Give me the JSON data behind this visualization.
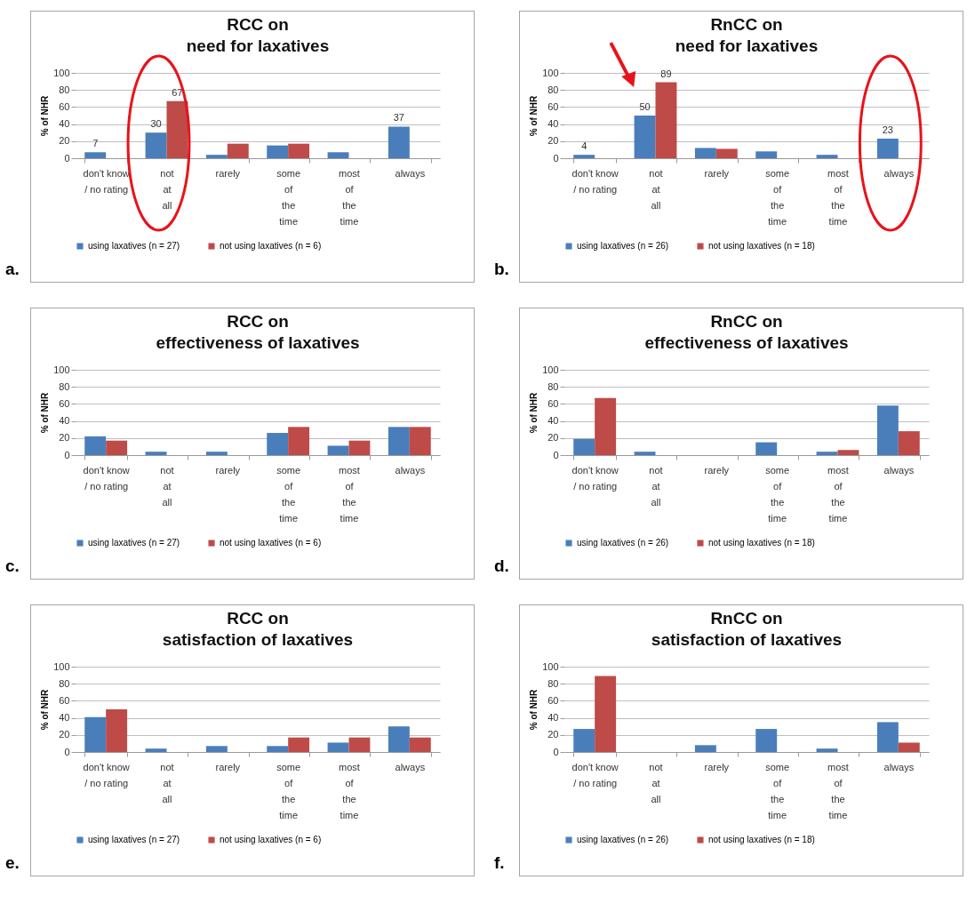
{
  "chart_data": [
    {
      "type": "bar",
      "title": "RCC on\nneed for laxatives",
      "ylabel": "% of NHR",
      "annotations": [
        "a."
      ],
      "categories": [
        "don't know\n/ no rating",
        "not\nat\nall",
        "rarely",
        "some\nof\nthe\ntime",
        "most\nof\nthe\ntime",
        "always"
      ],
      "ylim": [
        0,
        100
      ],
      "yticks": [
        0,
        20,
        40,
        60,
        80,
        100
      ],
      "grid": "y",
      "legend": "bottom",
      "series": [
        {
          "name": "using laxatives (n = 27)",
          "color": "#4a7ebb",
          "values": [
            7,
            30,
            4,
            15,
            7,
            37
          ],
          "value_labels": [
            "7",
            "30",
            null,
            null,
            null,
            "37"
          ]
        },
        {
          "name": "not using laxatives (n = 6)",
          "color": "#be4b48",
          "values": [
            0,
            67,
            17,
            17,
            0,
            0
          ],
          "value_labels": [
            null,
            "67",
            null,
            null,
            null,
            null
          ]
        }
      ]
    },
    {
      "type": "bar",
      "title": "RnCC on\nneed for laxatives",
      "ylabel": "% of NHR",
      "annotations": [
        "b."
      ],
      "categories": [
        "don't know\n/ no rating",
        "not\nat\nall",
        "rarely",
        "some\nof\nthe\ntime",
        "most\nof\nthe\ntime",
        "always"
      ],
      "ylim": [
        0,
        100
      ],
      "yticks": [
        0,
        20,
        40,
        60,
        80,
        100
      ],
      "grid": "y",
      "legend": "bottom",
      "series": [
        {
          "name": "using laxatives (n = 26)",
          "color": "#4a7ebb",
          "values": [
            4,
            50,
            12,
            8,
            4,
            23
          ],
          "value_labels": [
            "4",
            "50",
            null,
            null,
            null,
            "23"
          ]
        },
        {
          "name": "not using laxatives (n = 18)",
          "color": "#be4b48",
          "values": [
            0,
            89,
            11,
            0,
            0,
            0
          ],
          "value_labels": [
            null,
            "89",
            null,
            null,
            null,
            null
          ]
        }
      ]
    },
    {
      "type": "bar",
      "title": "RCC on\neffectiveness of laxatives",
      "ylabel": "% of NHR",
      "annotations": [
        "c."
      ],
      "categories": [
        "don't know\n/ no rating",
        "not\nat\nall",
        "rarely",
        "some\nof\nthe\ntime",
        "most\nof\nthe\ntime",
        "always"
      ],
      "ylim": [
        0,
        100
      ],
      "yticks": [
        0,
        20,
        40,
        60,
        80,
        100
      ],
      "grid": "y",
      "legend": "bottom",
      "series": [
        {
          "name": "using laxatives (n = 27)",
          "color": "#4a7ebb",
          "values": [
            22,
            4,
            4,
            26,
            11,
            33
          ]
        },
        {
          "name": "not using laxatives (n = 6)",
          "color": "#be4b48",
          "values": [
            17,
            0,
            0,
            33,
            17,
            33
          ]
        }
      ]
    },
    {
      "type": "bar",
      "title": "RnCC on\neffectiveness of laxatives",
      "ylabel": "% of NHR",
      "annotations": [
        "d."
      ],
      "categories": [
        "don't know\n/ no rating",
        "not\nat\nall",
        "rarely",
        "some\nof\nthe\ntime",
        "most\nof\nthe\ntime",
        "always"
      ],
      "ylim": [
        0,
        100
      ],
      "yticks": [
        0,
        20,
        40,
        60,
        80,
        100
      ],
      "grid": "y",
      "legend": "bottom",
      "series": [
        {
          "name": "using laxatives (n = 26)",
          "color": "#4a7ebb",
          "values": [
            19,
            4,
            0,
            15,
            4,
            58
          ]
        },
        {
          "name": "not using laxatives (n = 18)",
          "color": "#be4b48",
          "values": [
            67,
            0,
            0,
            0,
            6,
            28
          ]
        }
      ]
    },
    {
      "type": "bar",
      "title": "RCC on\nsatisfaction of laxatives",
      "ylabel": "% of NHR",
      "annotations": [
        "e."
      ],
      "categories": [
        "don't know\n/ no rating",
        "not\nat\nall",
        "rarely",
        "some\nof\nthe\ntime",
        "most\nof\nthe\ntime",
        "always"
      ],
      "ylim": [
        0,
        100
      ],
      "yticks": [
        0,
        20,
        40,
        60,
        80,
        100
      ],
      "grid": "y",
      "legend": "bottom",
      "series": [
        {
          "name": "using laxatives (n = 27)",
          "color": "#4a7ebb",
          "values": [
            41,
            4,
            7,
            7,
            11,
            30
          ]
        },
        {
          "name": "not using laxatives (n = 6)",
          "color": "#be4b48",
          "values": [
            50,
            0,
            0,
            17,
            17,
            17
          ]
        }
      ]
    },
    {
      "type": "bar",
      "title": "RnCC on\nsatisfaction of laxatives",
      "ylabel": "% of NHR",
      "annotations": [
        "f."
      ],
      "categories": [
        "don't know\n/ no rating",
        "not\nat\nall",
        "rarely",
        "some\nof\nthe\ntime",
        "most\nof\nthe\ntime",
        "always"
      ],
      "ylim": [
        0,
        100
      ],
      "yticks": [
        0,
        20,
        40,
        60,
        80,
        100
      ],
      "grid": "y",
      "legend": "bottom",
      "series": [
        {
          "name": "using laxatives (n = 26)",
          "color": "#4a7ebb",
          "values": [
            27,
            0,
            8,
            27,
            4,
            35
          ]
        },
        {
          "name": "not using laxatives (n = 18)",
          "color": "#be4b48",
          "values": [
            89,
            0,
            0,
            0,
            0,
            11
          ]
        }
      ]
    }
  ]
}
